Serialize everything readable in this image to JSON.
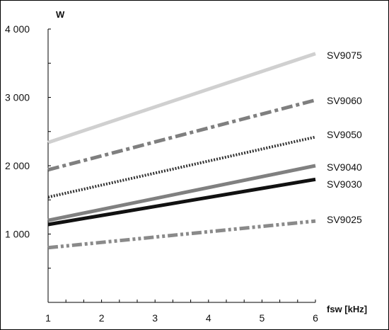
{
  "chart_data": {
    "type": "line",
    "xlabel": "fsw [kHz]",
    "ylabel": "W",
    "xlim": [
      1,
      6
    ],
    "ylim": [
      0,
      4000
    ],
    "x_ticks": [
      1,
      2,
      3,
      4,
      5,
      6
    ],
    "x_tick_labels": [
      "1",
      "2",
      "3",
      "4",
      "5",
      "6"
    ],
    "y_ticks": [
      1000,
      2000,
      3000,
      4000
    ],
    "y_tick_labels": [
      "1 000",
      "2 000",
      "3 000",
      "4 000"
    ],
    "grid": false,
    "legend": "inline labels at line ends",
    "series": [
      {
        "name": "SV9075",
        "x": [
          1,
          6
        ],
        "y": [
          2340,
          3640
        ],
        "color": "#d0d0d0",
        "style": "solid"
      },
      {
        "name": "SV9060",
        "x": [
          1,
          6
        ],
        "y": [
          1940,
          2960
        ],
        "color": "#7f7f7f",
        "style": "dash-dot"
      },
      {
        "name": "SV9050",
        "x": [
          1,
          6
        ],
        "y": [
          1540,
          2420
        ],
        "color": "#333333",
        "style": "dotted"
      },
      {
        "name": "SV9040",
        "x": [
          1,
          6
        ],
        "y": [
          1200,
          2000
        ],
        "color": "#808080",
        "style": "solid"
      },
      {
        "name": "SV9030",
        "x": [
          1,
          6
        ],
        "y": [
          1140,
          1800
        ],
        "color": "#111111",
        "style": "solid"
      },
      {
        "name": "SV9025",
        "x": [
          1,
          6
        ],
        "y": [
          800,
          1190
        ],
        "color": "#8a8a8a",
        "style": "dash-dot-dot"
      }
    ]
  }
}
